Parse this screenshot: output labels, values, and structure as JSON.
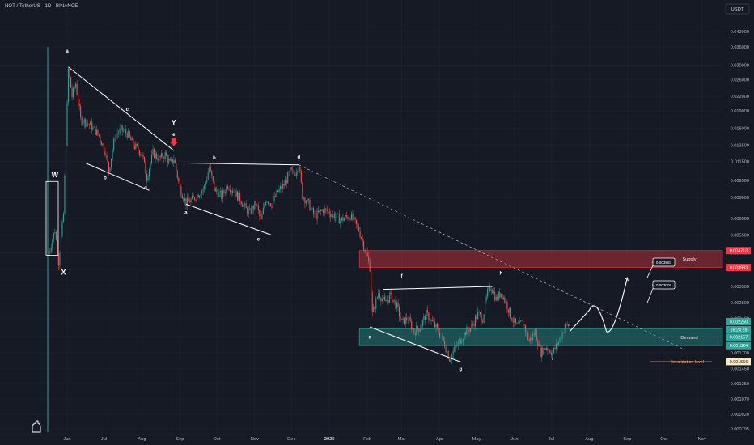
{
  "header": {
    "pair": "NOT / TetherUS",
    "interval": "1D",
    "exchange": "BINANCE",
    "currency": "USDT"
  },
  "chart_data": {
    "type": "candlestick",
    "title": "NOT / TetherUS · 1D · BINANCE",
    "y_scale": "log",
    "ylim": [
      0.00077,
      0.047
    ],
    "y_ticks": [
      "0.042000",
      "0.036000",
      "0.030000",
      "0.026000",
      "0.022000",
      "0.019000",
      "0.016000",
      "0.013500",
      "0.011500",
      "0.009500",
      "0.008000",
      "0.006500",
      "0.005500",
      "0.004600",
      "0.003900",
      "0.003300",
      "0.002800",
      "0.002400",
      "0.002000",
      "0.001700",
      "0.001450",
      "0.001250",
      "0.001070",
      "0.000920",
      "0.000795"
    ],
    "x_ticks": [
      "Jun",
      "Jul",
      "Aug",
      "Sep",
      "Oct",
      "Nov",
      "Dec",
      "2025",
      "Feb",
      "Mar",
      "Apr",
      "May",
      "Jun",
      "Jul",
      "Aug",
      "Sep",
      "Oct",
      "Nov"
    ],
    "price_path": [
      [
        "2024-05-17",
        0.0046
      ],
      [
        "2024-05-22",
        0.0058
      ],
      [
        "2024-05-25",
        0.0042
      ],
      [
        "2024-05-29",
        0.0068
      ],
      [
        "2024-06-02",
        0.0288
      ],
      [
        "2024-06-05",
        0.022
      ],
      [
        "2024-06-08",
        0.025
      ],
      [
        "2024-06-12",
        0.0175
      ],
      [
        "2024-06-20",
        0.0165
      ],
      [
        "2024-06-27",
        0.0148
      ],
      [
        "2024-07-02",
        0.0128
      ],
      [
        "2024-07-05",
        0.0105
      ],
      [
        "2024-07-10",
        0.0148
      ],
      [
        "2024-07-15",
        0.0158
      ],
      [
        "2024-07-20",
        0.0152
      ],
      [
        "2024-07-25",
        0.0135
      ],
      [
        "2024-08-01",
        0.0125
      ],
      [
        "2024-08-05",
        0.0098
      ],
      [
        "2024-08-10",
        0.0125
      ],
      [
        "2024-08-15",
        0.0118
      ],
      [
        "2024-08-20",
        0.0123
      ],
      [
        "2024-08-24",
        0.0112
      ],
      [
        "2024-08-27",
        0.0118
      ],
      [
        "2024-09-01",
        0.0088
      ],
      [
        "2024-09-06",
        0.0076
      ],
      [
        "2024-09-12",
        0.0079
      ],
      [
        "2024-09-15",
        0.0082
      ],
      [
        "2024-09-21",
        0.0089
      ],
      [
        "2024-09-25",
        0.0108
      ],
      [
        "2024-09-29",
        0.0087
      ],
      [
        "2024-10-05",
        0.0081
      ],
      [
        "2024-10-10",
        0.0091
      ],
      [
        "2024-10-15",
        0.0085
      ],
      [
        "2024-10-20",
        0.0079
      ],
      [
        "2024-10-25",
        0.0071
      ],
      [
        "2024-10-28",
        0.0069
      ],
      [
        "2024-11-02",
        0.0076
      ],
      [
        "2024-11-06",
        0.0063
      ],
      [
        "2024-11-10",
        0.0079
      ],
      [
        "2024-11-15",
        0.0075
      ],
      [
        "2024-11-20",
        0.0085
      ],
      [
        "2024-11-25",
        0.0091
      ],
      [
        "2024-11-30",
        0.0104
      ],
      [
        "2024-12-03",
        0.0101
      ],
      [
        "2024-12-07",
        0.0112
      ],
      [
        "2024-12-10",
        0.0082
      ],
      [
        "2024-12-15",
        0.0075
      ],
      [
        "2024-12-20",
        0.0066
      ],
      [
        "2024-12-27",
        0.0071
      ],
      [
        "2025-01-03",
        0.0068
      ],
      [
        "2025-01-10",
        0.0064
      ],
      [
        "2025-01-18",
        0.0067
      ],
      [
        "2025-01-25",
        0.0058
      ],
      [
        "2025-01-31",
        0.0046
      ],
      [
        "2025-02-03",
        0.004
      ],
      [
        "2025-02-05",
        0.0025
      ],
      [
        "2025-02-10",
        0.0031
      ],
      [
        "2025-02-15",
        0.0028
      ],
      [
        "2025-02-20",
        0.003
      ],
      [
        "2025-02-25",
        0.0027
      ],
      [
        "2025-03-01",
        0.0023
      ],
      [
        "2025-03-06",
        0.0024
      ],
      [
        "2025-03-11",
        0.0021
      ],
      [
        "2025-03-16",
        0.0022
      ],
      [
        "2025-03-21",
        0.0025
      ],
      [
        "2025-03-26",
        0.0023
      ],
      [
        "2025-03-31",
        0.0021
      ],
      [
        "2025-04-05",
        0.00185
      ],
      [
        "2025-04-09",
        0.0016
      ],
      [
        "2025-04-13",
        0.00175
      ],
      [
        "2025-04-17",
        0.0019
      ],
      [
        "2025-04-22",
        0.0021
      ],
      [
        "2025-04-27",
        0.0022
      ],
      [
        "2025-05-02",
        0.0025
      ],
      [
        "2025-05-06",
        0.0024
      ],
      [
        "2025-05-10",
        0.0031
      ],
      [
        "2025-05-13",
        0.0033
      ],
      [
        "2025-05-17",
        0.0029
      ],
      [
        "2025-05-21",
        0.0031
      ],
      [
        "2025-05-25",
        0.0028
      ],
      [
        "2025-05-30",
        0.0024
      ],
      [
        "2025-06-03",
        0.0022
      ],
      [
        "2025-06-08",
        0.0023
      ],
      [
        "2025-06-13",
        0.0019
      ],
      [
        "2025-06-18",
        0.0021
      ],
      [
        "2025-06-22",
        0.0017
      ],
      [
        "2025-06-27",
        0.0018
      ],
      [
        "2025-07-02",
        0.0017
      ],
      [
        "2025-07-07",
        0.0019
      ],
      [
        "2025-07-12",
        0.0022
      ],
      [
        "2025-07-16",
        0.00225
      ]
    ],
    "price_scale_labels": [
      {
        "value": "0.004713",
        "color": "#f23645"
      },
      {
        "value": "0.003983",
        "color": "#f23645"
      },
      {
        "value": "0.002250",
        "color": "#26a69a"
      },
      {
        "value": "16:24:28",
        "color": "#26a69a"
      },
      {
        "value": "0.002157",
        "color": "#26a69a"
      },
      {
        "value": "0.001824",
        "color": "#26a69a"
      },
      {
        "value": "0.001556",
        "color": "#fbe9c5"
      }
    ],
    "zones": [
      {
        "name": "Supply",
        "top": 0.004713,
        "bottom": 0.003983,
        "color": "#f23645"
      },
      {
        "name": "Demand",
        "top": 0.002157,
        "bottom": 0.001824,
        "color": "#26a69a"
      }
    ],
    "invalidation": {
      "label": "Invalidation level",
      "value": 0.001556
    },
    "targets": [
      "0.003983",
      "0.003009"
    ],
    "wave_labels": [
      "W",
      "X",
      "Y",
      "a",
      "b",
      "c",
      "d",
      "e",
      "a",
      "b",
      "c",
      "d",
      "e",
      "f",
      "g",
      "h",
      "i"
    ],
    "colors": {
      "up": "#26a69a",
      "down": "#ef5350",
      "bg": "#161a25",
      "grid": "#1f2330",
      "text": "#b2b5be"
    }
  }
}
